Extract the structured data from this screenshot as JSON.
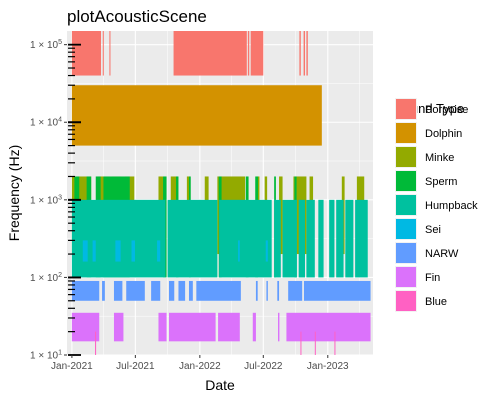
{
  "chart_data": {
    "type": "bar",
    "title": "plotAcousticScene",
    "xlabel": "Date",
    "ylabel": "Frequency (Hz)",
    "y_scale": "log10",
    "ylim": [
      10,
      150000
    ],
    "xlim": [
      "2020-12-18",
      "2023-05-10"
    ],
    "grid": true,
    "background": "#ebebeb",
    "x_ticks": [
      {
        "date": "2021-01-01",
        "label": "Jan-2021"
      },
      {
        "date": "2021-07-01",
        "label": "Jul-2021"
      },
      {
        "date": "2022-01-01",
        "label": "Jan-2022"
      },
      {
        "date": "2022-07-01",
        "label": "Jul-2022"
      },
      {
        "date": "2023-01-01",
        "label": "Jan-2023"
      }
    ],
    "y_ticks": [
      {
        "value": 10,
        "base": "1 × 10",
        "exp": "1"
      },
      {
        "value": 100,
        "base": "1 × 10",
        "exp": "2"
      },
      {
        "value": 1000,
        "base": "1 × 10",
        "exp": "3"
      },
      {
        "value": 10000,
        "base": "1 × 10",
        "exp": "4"
      },
      {
        "value": 100000,
        "base": "1 × 10",
        "exp": "5"
      }
    ],
    "legend": {
      "title": "Sound Type",
      "position": "right",
      "items": [
        {
          "name": "Porpoise",
          "color": "#F8766D"
        },
        {
          "name": "Dolphin",
          "color": "#D39200"
        },
        {
          "name": "Minke",
          "color": "#93AA00"
        },
        {
          "name": "Sperm",
          "color": "#00BA38"
        },
        {
          "name": "Humpback",
          "color": "#00C19F"
        },
        {
          "name": "Sei",
          "color": "#00B9E3"
        },
        {
          "name": "NARW",
          "color": "#619CFF"
        },
        {
          "name": "Fin",
          "color": "#DB72FB"
        },
        {
          "name": "Blue",
          "color": "#FF61C3"
        }
      ]
    },
    "series": [
      {
        "name": "Porpoise",
        "freq_min": 40000,
        "freq_max": 150000,
        "periods": [
          [
            "2021-01-01",
            "2021-03-25"
          ],
          [
            "2021-03-30",
            "2021-04-02"
          ],
          [
            "2021-04-18",
            "2021-04-21"
          ],
          [
            "2021-10-18",
            "2022-05-15"
          ],
          [
            "2022-05-18",
            "2022-05-22"
          ],
          [
            "2022-05-26",
            "2022-07-01"
          ],
          [
            "2022-10-12",
            "2022-10-16"
          ],
          [
            "2022-10-24",
            "2022-10-28"
          ],
          [
            "2022-11-01",
            "2022-11-05"
          ]
        ]
      },
      {
        "name": "Dolphin",
        "freq_min": 5000,
        "freq_max": 30000,
        "periods": [
          [
            "2021-01-01",
            "2022-12-15"
          ]
        ]
      },
      {
        "name": "Minke",
        "freq_min": 200,
        "freq_max": 2000,
        "periods": [
          [
            "2021-01-01",
            "2021-02-25"
          ],
          [
            "2021-03-15",
            "2021-04-18"
          ],
          [
            "2021-04-25",
            "2021-05-20"
          ],
          [
            "2021-06-01",
            "2021-06-28"
          ],
          [
            "2021-09-05",
            "2021-09-25"
          ],
          [
            "2021-10-10",
            "2021-10-30"
          ],
          [
            "2021-11-25",
            "2021-12-05"
          ],
          [
            "2022-01-15",
            "2022-01-26"
          ],
          [
            "2022-02-20",
            "2022-05-10"
          ],
          [
            "2022-06-10",
            "2022-06-20"
          ],
          [
            "2022-07-05",
            "2022-07-12"
          ],
          [
            "2022-08-15",
            "2022-08-25"
          ],
          [
            "2022-09-25",
            "2022-11-01"
          ],
          [
            "2022-11-10",
            "2022-11-20"
          ],
          [
            "2023-02-10",
            "2023-02-18"
          ],
          [
            "2023-03-25",
            "2023-04-15"
          ]
        ]
      },
      {
        "name": "Sperm",
        "freq_min": 100,
        "freq_max": 2000,
        "periods": [
          [
            "2021-01-08",
            "2021-01-22"
          ],
          [
            "2021-02-12",
            "2021-02-25"
          ],
          [
            "2021-03-10",
            "2021-03-24"
          ],
          [
            "2021-04-01",
            "2021-06-15"
          ],
          [
            "2021-09-18",
            "2021-09-28"
          ],
          [
            "2021-10-25",
            "2021-11-01"
          ],
          [
            "2021-12-01",
            "2021-12-06"
          ],
          [
            "2022-02-24",
            "2022-03-04"
          ],
          [
            "2022-05-12",
            "2022-05-20"
          ],
          [
            "2022-06-08",
            "2022-06-16"
          ],
          [
            "2022-08-01",
            "2022-08-06"
          ],
          [
            "2022-09-28",
            "2022-10-04"
          ]
        ]
      },
      {
        "name": "Humpback",
        "freq_min": 100,
        "freq_max": 1000,
        "periods": [
          [
            "2021-01-01",
            "2021-09-25"
          ],
          [
            "2021-10-01",
            "2022-02-20"
          ],
          [
            "2022-02-25",
            "2022-07-25"
          ],
          [
            "2022-08-01",
            "2022-08-20"
          ],
          [
            "2022-08-25",
            "2022-10-05"
          ],
          [
            "2022-10-10",
            "2022-10-28"
          ],
          [
            "2022-11-01",
            "2022-11-25"
          ],
          [
            "2022-12-05",
            "2022-12-20"
          ],
          [
            "2023-01-05",
            "2023-01-20"
          ],
          [
            "2023-01-25",
            "2023-02-15"
          ],
          [
            "2023-02-20",
            "2023-03-15"
          ],
          [
            "2023-03-20",
            "2023-04-25"
          ]
        ]
      },
      {
        "name": "Sei",
        "freq_min": 160,
        "freq_max": 300,
        "periods": [
          [
            "2021-02-01",
            "2021-02-15"
          ],
          [
            "2021-03-01",
            "2021-03-10"
          ],
          [
            "2021-05-05",
            "2021-05-20"
          ],
          [
            "2021-06-20",
            "2021-06-30"
          ],
          [
            "2021-09-01",
            "2021-09-10"
          ],
          [
            "2022-04-20",
            "2022-04-25"
          ],
          [
            "2022-07-08",
            "2022-07-14"
          ]
        ]
      },
      {
        "name": "NARW",
        "freq_min": 50,
        "freq_max": 90,
        "periods": [
          [
            "2021-01-01",
            "2021-03-20"
          ],
          [
            "2021-03-28",
            "2021-04-05"
          ],
          [
            "2021-05-01",
            "2021-05-25"
          ],
          [
            "2021-06-05",
            "2021-07-28"
          ],
          [
            "2021-08-15",
            "2021-09-10"
          ],
          [
            "2021-10-05",
            "2021-10-20"
          ],
          [
            "2021-11-01",
            "2021-11-20"
          ],
          [
            "2021-12-01",
            "2021-12-12"
          ],
          [
            "2021-12-22",
            "2022-04-28"
          ],
          [
            "2022-06-10",
            "2022-06-15"
          ],
          [
            "2022-07-10",
            "2022-07-14"
          ],
          [
            "2022-08-10",
            "2022-08-15"
          ],
          [
            "2022-09-10",
            "2022-10-20"
          ],
          [
            "2022-10-25",
            "2023-05-03"
          ]
        ]
      },
      {
        "name": "Fin",
        "freq_min": 15,
        "freq_max": 35,
        "periods": [
          [
            "2021-01-01",
            "2021-03-20"
          ],
          [
            "2021-05-01",
            "2021-05-28"
          ],
          [
            "2021-09-05",
            "2021-09-28"
          ],
          [
            "2021-10-05",
            "2022-02-15"
          ],
          [
            "2022-02-22",
            "2022-04-25"
          ],
          [
            "2022-06-01",
            "2022-06-10"
          ],
          [
            "2022-08-12",
            "2022-08-16"
          ],
          [
            "2022-09-05",
            "2023-05-03"
          ]
        ]
      },
      {
        "name": "Blue",
        "freq_min": 10,
        "freq_max": 20,
        "periods": [
          [
            "2021-03-08",
            "2021-03-11"
          ],
          [
            "2022-10-15",
            "2022-10-17"
          ],
          [
            "2022-11-25",
            "2022-11-27"
          ],
          [
            "2023-01-20",
            "2023-01-22"
          ]
        ]
      }
    ]
  }
}
